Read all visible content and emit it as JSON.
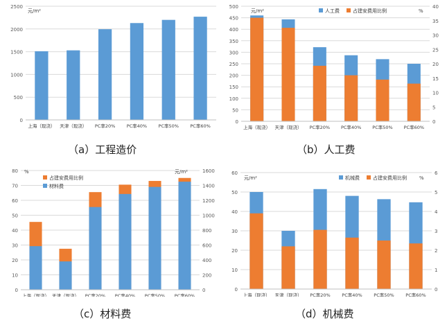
{
  "charts": [
    {
      "caption": "（a）工程造价",
      "chart_data": {
        "type": "bar",
        "categories": [
          "上海（现浇）",
          "天津（现浇）",
          "PC率20%",
          "PC率40%",
          "PC率50%",
          "PC率60%"
        ],
        "series": [
          {
            "values": [
              1510,
              1530,
              1995,
              2130,
              2200,
              2270
            ],
            "color": "#5B9BD5"
          }
        ],
        "ylabel_left": "元/m²",
        "ylim_left": [
          0,
          2500
        ],
        "yticks_left": [
          "0",
          "500",
          "1000",
          "1500",
          "2000",
          "2500"
        ],
        "legend": []
      }
    },
    {
      "caption": "（b）人工费",
      "chart_data": {
        "type": "bar",
        "categories": [
          "上海（现浇）",
          "天津（现浇）",
          "PC率20%",
          "PC率40%",
          "PC率50%",
          "PC率60%"
        ],
        "series": [
          {
            "name": "人工费",
            "axis": "left",
            "values": [
              460,
              443,
              322,
              287,
              270,
              250
            ],
            "color": "#5B9BD5"
          },
          {
            "name": "占建安费用比例",
            "axis": "right",
            "values": [
              36,
              32.5,
              19.3,
              16,
              14.5,
              13.1
            ],
            "color": "#ED7D31"
          }
        ],
        "ylabel_left": "元/m²",
        "ylabel_right": "%",
        "ylim_left": [
          0,
          500
        ],
        "yticks_left": [
          "0",
          "50",
          "100",
          "150",
          "200",
          "250",
          "300",
          "350",
          "400",
          "450",
          "500"
        ],
        "ylim_right": [
          0,
          40
        ],
        "yticks_right": [
          "0",
          "5",
          "10",
          "15",
          "20",
          "25",
          "30",
          "35",
          "40"
        ],
        "legend": [
          "人工费",
          "占建安费用比例"
        ]
      }
    },
    {
      "caption": "（c）材料费",
      "chart_data": {
        "type": "bar",
        "categories": [
          "上海（现浇）",
          "天津（现浇）",
          "PC率20%",
          "PC率40%",
          "PC率50%",
          "PC率60%"
        ],
        "series": [
          {
            "name": "材料费",
            "axis": "right",
            "values": [
              585,
              380,
              1110,
              1285,
              1380,
              1450
            ],
            "color": "#5B9BD5"
          },
          {
            "name": "占建安费用比例",
            "axis": "left",
            "values": [
              45.5,
              27.5,
              65.5,
              70.5,
              73,
              75
            ],
            "color": "#ED7D31"
          }
        ],
        "ylabel_left": "%",
        "ylabel_right": "元/m²",
        "ylim_left": [
          0,
          80
        ],
        "yticks_left": [
          "0",
          "10",
          "20",
          "30",
          "40",
          "50",
          "60",
          "70",
          "80"
        ],
        "ylim_right": [
          0,
          1600
        ],
        "yticks_right": [
          "0",
          "200",
          "400",
          "600",
          "800",
          "1000",
          "1200",
          "1400",
          "1600"
        ],
        "legend": [
          "占建安费用比例",
          "材料费"
        ]
      }
    },
    {
      "caption": "（d）机械费",
      "chart_data": {
        "type": "bar",
        "categories": [
          "上海（现浇）",
          "天津（现浇）",
          "PC率20%",
          "PC率40%",
          "PC率50%",
          "PC率60%"
        ],
        "series": [
          {
            "name": "机械费",
            "axis": "left",
            "values": [
              50,
              30,
              51.5,
              48,
              46.3,
              44.7
            ],
            "color": "#5B9BD5"
          },
          {
            "name": "占建安费用比例",
            "axis": "right",
            "values": [
              3.9,
              2.2,
              3.05,
              2.65,
              2.5,
              2.35
            ],
            "color": "#ED7D31"
          }
        ],
        "ylabel_left": "元/m²",
        "ylabel_right": "%",
        "ylim_left": [
          0,
          60
        ],
        "yticks_left": [
          "0",
          "10",
          "20",
          "30",
          "40",
          "50",
          "60"
        ],
        "ylim_right": [
          0,
          6
        ],
        "yticks_right": [
          "0",
          "1",
          "2",
          "3",
          "4",
          "5",
          "6"
        ],
        "legend": [
          "机械费",
          "占建安费用比例"
        ]
      }
    }
  ]
}
